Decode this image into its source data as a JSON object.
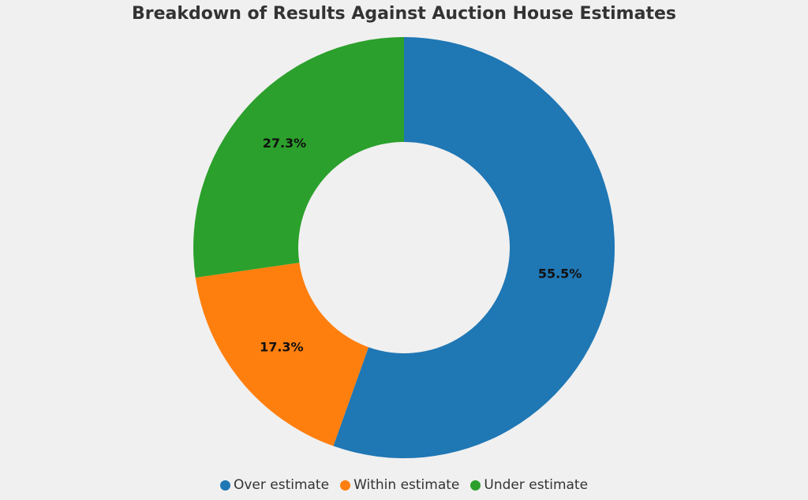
{
  "chart_data": {
    "type": "donut",
    "title": "Breakdown of Results Against Auction House Estimates",
    "categories": [
      "Over estimate",
      "Within estimate",
      "Under estimate"
    ],
    "values": [
      55.5,
      17.3,
      27.3
    ],
    "value_labels": [
      "55.5%",
      "17.3%",
      "27.3%"
    ],
    "colors": [
      "#1f77b4",
      "#ff7f0e",
      "#2ca02c"
    ],
    "legend": "bottom"
  }
}
